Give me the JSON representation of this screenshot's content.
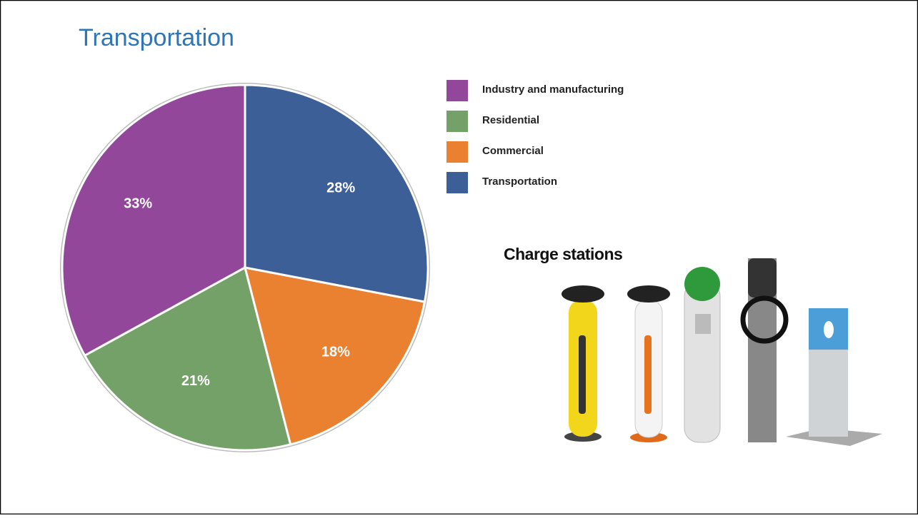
{
  "chart_data": {
    "type": "pie",
    "title": "Transportation",
    "categories": [
      "Industry and manufacturing",
      "Residential",
      "Commercial",
      "Transportation"
    ],
    "values": [
      33,
      21,
      18,
      28
    ],
    "value_labels": [
      "33%",
      "21%",
      "18%",
      "28%"
    ],
    "colors": [
      "#93479b",
      "#74a167",
      "#e98130",
      "#3d5f98"
    ]
  },
  "image_caption": "Charge stations"
}
